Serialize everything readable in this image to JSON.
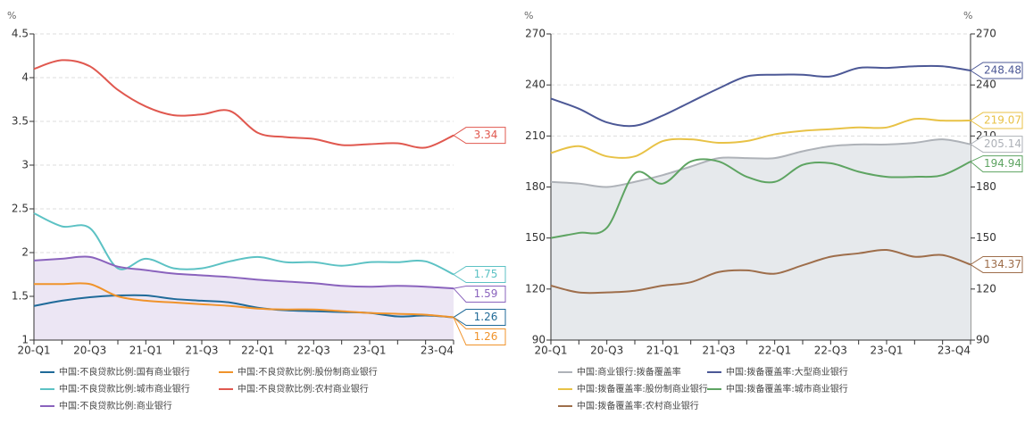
{
  "chart_data": [
    {
      "type": "line",
      "y_label": "%",
      "categories": [
        "20-Q1",
        null,
        "20-Q3",
        null,
        "21-Q1",
        null,
        "21-Q3",
        null,
        "22-Q1",
        null,
        "22-Q3",
        null,
        "23-Q1",
        null,
        null,
        "23-Q4"
      ],
      "ylim": [
        1,
        4.5
      ],
      "yticks": [
        1,
        1.5,
        2,
        2.5,
        3,
        3.5,
        4,
        4.5
      ],
      "grid": true,
      "series": [
        {
          "name": "中国:不良贷款比例:国有商业银行",
          "color": "#1f6a99",
          "values": [
            1.39,
            1.45,
            1.49,
            1.51,
            1.51,
            1.47,
            1.45,
            1.43,
            1.37,
            1.34,
            1.33,
            1.32,
            1.31,
            1.27,
            1.28,
            1.26
          ]
        },
        {
          "name": "中国:不良贷款比例:股份制商业银行",
          "color": "#f0932b",
          "values": [
            1.64,
            1.64,
            1.64,
            1.5,
            1.45,
            1.43,
            1.41,
            1.39,
            1.36,
            1.35,
            1.35,
            1.33,
            1.31,
            1.3,
            1.29,
            1.26
          ]
        },
        {
          "name": "中国:不良贷款比例:城市商业银行",
          "color": "#5cc2c4",
          "values": [
            2.45,
            2.3,
            2.28,
            1.82,
            1.93,
            1.82,
            1.82,
            1.9,
            1.95,
            1.89,
            1.89,
            1.85,
            1.89,
            1.89,
            1.9,
            1.75
          ]
        },
        {
          "name": "中国:不良贷款比例:农村商业银行",
          "color": "#e0584f",
          "values": [
            4.1,
            4.2,
            4.13,
            3.86,
            3.67,
            3.57,
            3.58,
            3.62,
            3.37,
            3.32,
            3.3,
            3.23,
            3.24,
            3.25,
            3.2,
            3.34
          ]
        },
        {
          "name": "中国:不良贷款比例:商业银行",
          "color": "#8a63bd",
          "area_color": "#ece6f4",
          "values": [
            1.91,
            1.93,
            1.95,
            1.84,
            1.8,
            1.76,
            1.74,
            1.72,
            1.69,
            1.67,
            1.65,
            1.62,
            1.61,
            1.62,
            1.61,
            1.59
          ]
        }
      ]
    },
    {
      "type": "line",
      "y_label": "%",
      "y2_label": "%",
      "categories": [
        "20-Q1",
        null,
        "20-Q3",
        null,
        "21-Q1",
        null,
        "21-Q3",
        null,
        "22-Q1",
        null,
        "22-Q3",
        null,
        "23-Q1",
        null,
        null,
        "23-Q4"
      ],
      "ylim": [
        90,
        270
      ],
      "yticks": [
        90,
        120,
        150,
        180,
        210,
        240,
        270
      ],
      "y2lim": [
        90,
        270
      ],
      "y2ticks": [
        90,
        120,
        150,
        180,
        210,
        240,
        270
      ],
      "grid": true,
      "series": [
        {
          "name": "中国:商业银行:拨备覆盖率",
          "color": "#aeb2b8",
          "area_color": "#e6e9ec",
          "values": [
            183,
            182,
            180,
            183,
            187,
            192,
            197,
            197,
            197,
            201,
            204,
            205,
            205,
            206,
            208,
            205.14
          ]
        },
        {
          "name": "中国:拨备覆盖率:大型商业银行",
          "color": "#4c5896",
          "values": [
            232,
            226,
            218,
            216,
            222,
            230,
            238,
            245,
            246,
            246,
            245,
            250,
            250,
            251,
            251,
            248.48
          ]
        },
        {
          "name": "中国:拨备覆盖率:股份制商业银行",
          "color": "#e8c246",
          "values": [
            200,
            204,
            198,
            198,
            207,
            208,
            206,
            207,
            211,
            213,
            214,
            215,
            215,
            220,
            219,
            219.07
          ]
        },
        {
          "name": "中国:拨备覆盖率:城市商业银行",
          "color": "#5ea462",
          "values": [
            150,
            153,
            156,
            188,
            182,
            195,
            195,
            186,
            183,
            193,
            194,
            189,
            186,
            186,
            187,
            194.94
          ]
        },
        {
          "name": "中国:拨备覆盖率:农村商业银行",
          "color": "#9e6e4b",
          "values": [
            122,
            118,
            118,
            119,
            122,
            124,
            130,
            131,
            129,
            134,
            139,
            141,
            143,
            139,
            140,
            134.37
          ]
        }
      ]
    }
  ]
}
